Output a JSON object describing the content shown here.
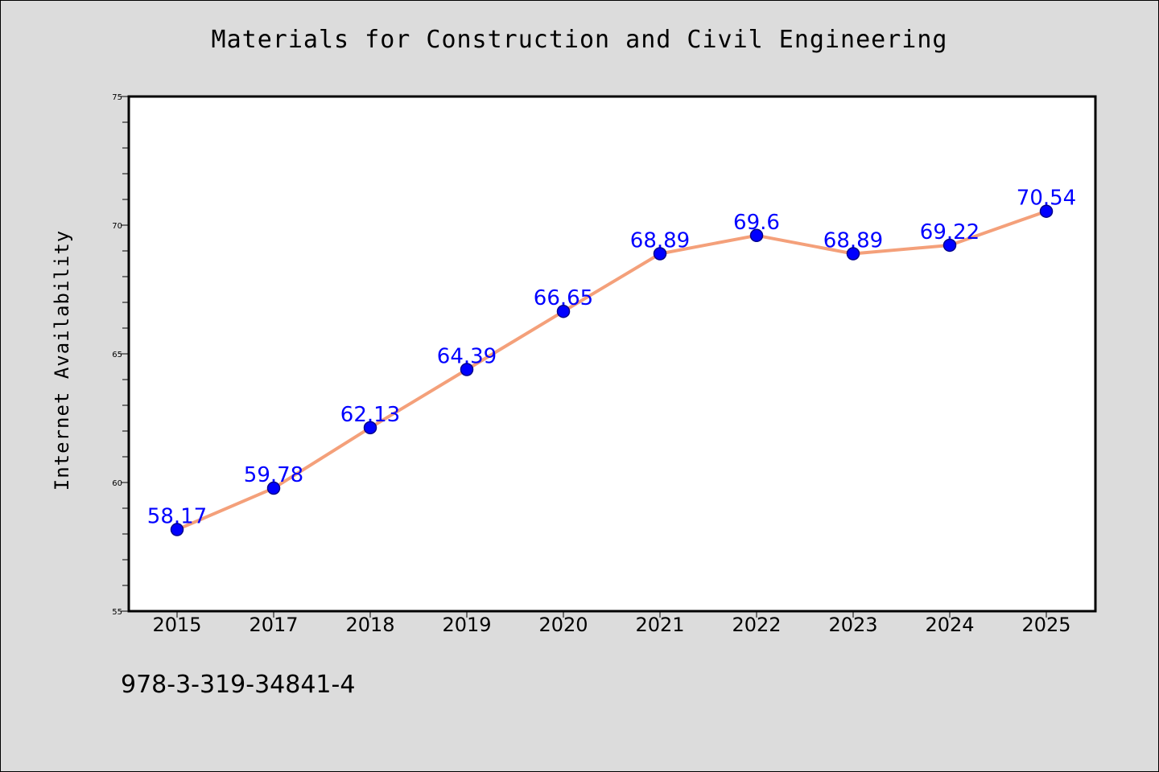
{
  "chart_data": {
    "type": "line",
    "title": "Materials for Construction and Civil Engineering",
    "xlabel": "",
    "ylabel": "Internet Availability",
    "categories": [
      "2015",
      "2017",
      "2018",
      "2019",
      "2020",
      "2021",
      "2022",
      "2023",
      "2024",
      "2025"
    ],
    "series": [
      {
        "values": [
          58.17,
          59.78,
          62.13,
          64.39,
          66.65,
          68.89,
          69.6,
          68.89,
          69.22,
          70.54
        ],
        "data_labels": [
          "58.17",
          "59.78",
          "62.13",
          "64.39",
          "66.65",
          "68.89",
          "69.6",
          "68.89",
          "69.22",
          "70.54"
        ]
      }
    ],
    "ylim": [
      55,
      75
    ],
    "yticks": [
      55,
      60,
      65,
      70,
      75
    ],
    "y_minor_step": 1,
    "grid": false,
    "colors": {
      "line": "#f4a07a",
      "marker": "#0000ff",
      "marker_edge": "#00008b",
      "data_label": "#0000ff",
      "background": "#dcdcdc",
      "plot_area": "#ffffff"
    }
  },
  "footer": {
    "code": "978-3-319-34841-4"
  }
}
